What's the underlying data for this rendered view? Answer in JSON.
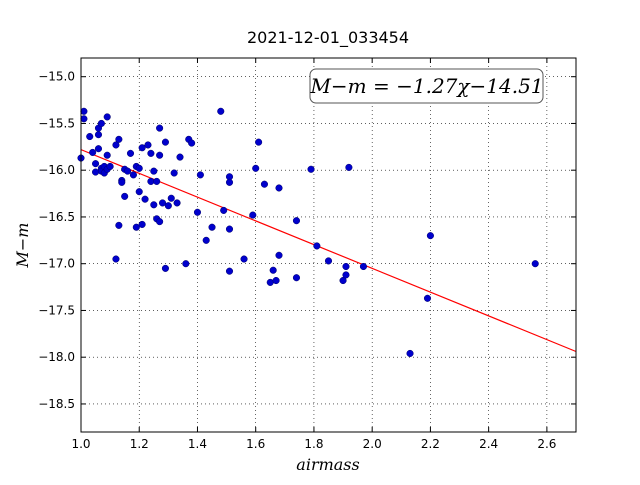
{
  "chart_data": {
    "type": "scatter",
    "title": "2021-12-01_033454",
    "xlabel": "airmass",
    "ylabel": "M−m",
    "xlim": [
      1.0,
      2.7
    ],
    "ylim": [
      -18.8,
      -14.8
    ],
    "y_inverted": true,
    "grid": true,
    "x_ticks": [
      "1.0",
      "1.2",
      "1.4",
      "1.6",
      "1.8",
      "2.0",
      "2.2",
      "2.4",
      "2.6"
    ],
    "y_ticks": [
      "−15.0",
      "−15.5",
      "−16.0",
      "−16.5",
      "−17.0",
      "−17.5",
      "−18.0",
      "−18.5"
    ],
    "annotation": "M−m = −1.27χ−14.51",
    "fit": {
      "slope": -1.27,
      "intercept": -14.51,
      "color": "#ff0000"
    },
    "marker_color": "#0000cc",
    "points": [
      [
        1.0,
        -15.87
      ],
      [
        1.01,
        -15.37
      ],
      [
        1.01,
        -15.45
      ],
      [
        1.03,
        -15.64
      ],
      [
        1.04,
        -15.81
      ],
      [
        1.05,
        -15.93
      ],
      [
        1.05,
        -16.02
      ],
      [
        1.06,
        -15.55
      ],
      [
        1.06,
        -15.62
      ],
      [
        1.06,
        -15.77
      ],
      [
        1.07,
        -15.5
      ],
      [
        1.07,
        -15.98
      ],
      [
        1.07,
        -16.01
      ],
      [
        1.08,
        -15.96
      ],
      [
        1.08,
        -16.03
      ],
      [
        1.09,
        -15.43
      ],
      [
        1.09,
        -15.84
      ],
      [
        1.09,
        -15.99
      ],
      [
        1.1,
        -15.96
      ],
      [
        1.12,
        -15.73
      ],
      [
        1.12,
        -16.95
      ],
      [
        1.13,
        -15.67
      ],
      [
        1.13,
        -16.59
      ],
      [
        1.14,
        -16.11
      ],
      [
        1.14,
        -16.13
      ],
      [
        1.15,
        -15.99
      ],
      [
        1.15,
        -16.28
      ],
      [
        1.16,
        -16.01
      ],
      [
        1.17,
        -15.82
      ],
      [
        1.18,
        -16.05
      ],
      [
        1.19,
        -15.96
      ],
      [
        1.19,
        -16.61
      ],
      [
        1.2,
        -15.98
      ],
      [
        1.2,
        -16.23
      ],
      [
        1.21,
        -15.76
      ],
      [
        1.21,
        -16.58
      ],
      [
        1.22,
        -16.31
      ],
      [
        1.23,
        -15.73
      ],
      [
        1.24,
        -15.82
      ],
      [
        1.24,
        -16.12
      ],
      [
        1.25,
        -16.01
      ],
      [
        1.25,
        -16.37
      ],
      [
        1.26,
        -16.52
      ],
      [
        1.26,
        -16.12
      ],
      [
        1.27,
        -15.55
      ],
      [
        1.27,
        -15.84
      ],
      [
        1.27,
        -16.55
      ],
      [
        1.28,
        -16.35
      ],
      [
        1.29,
        -15.7
      ],
      [
        1.29,
        -17.05
      ],
      [
        1.3,
        -16.38
      ],
      [
        1.31,
        -16.3
      ],
      [
        1.32,
        -16.03
      ],
      [
        1.33,
        -16.35
      ],
      [
        1.34,
        -15.86
      ],
      [
        1.36,
        -17.0
      ],
      [
        1.37,
        -15.67
      ],
      [
        1.38,
        -15.71
      ],
      [
        1.4,
        -16.45
      ],
      [
        1.41,
        -16.05
      ],
      [
        1.43,
        -16.75
      ],
      [
        1.45,
        -16.61
      ],
      [
        1.48,
        -15.37
      ],
      [
        1.49,
        -16.43
      ],
      [
        1.51,
        -16.07
      ],
      [
        1.51,
        -16.13
      ],
      [
        1.51,
        -16.63
      ],
      [
        1.51,
        -17.08
      ],
      [
        1.56,
        -16.95
      ],
      [
        1.59,
        -16.48
      ],
      [
        1.6,
        -15.98
      ],
      [
        1.61,
        -15.7
      ],
      [
        1.63,
        -16.15
      ],
      [
        1.65,
        -17.2
      ],
      [
        1.66,
        -17.07
      ],
      [
        1.67,
        -17.18
      ],
      [
        1.68,
        -16.19
      ],
      [
        1.68,
        -16.91
      ],
      [
        1.74,
        -17.15
      ],
      [
        1.74,
        -16.54
      ],
      [
        1.79,
        -15.99
      ],
      [
        1.81,
        -16.81
      ],
      [
        1.85,
        -16.97
      ],
      [
        1.9,
        -17.18
      ],
      [
        1.91,
        -17.03
      ],
      [
        1.91,
        -17.12
      ],
      [
        1.92,
        -15.97
      ],
      [
        1.97,
        -17.03
      ],
      [
        2.13,
        -17.96
      ],
      [
        2.19,
        -17.37
      ],
      [
        2.2,
        -16.7
      ],
      [
        2.56,
        -17.0
      ]
    ]
  }
}
